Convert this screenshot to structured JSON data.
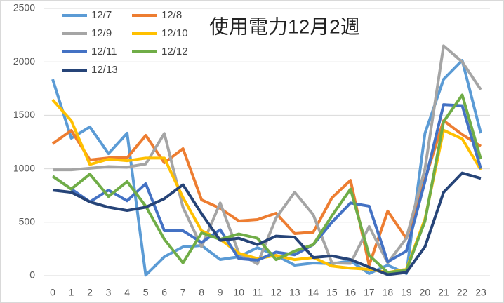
{
  "chart_data": {
    "type": "line",
    "title": "使用電力12月2週",
    "x": [
      0,
      1,
      2,
      3,
      4,
      5,
      6,
      7,
      8,
      9,
      10,
      11,
      12,
      13,
      14,
      15,
      16,
      17,
      18,
      19,
      20,
      21,
      22,
      23
    ],
    "xlim": [
      0,
      23
    ],
    "ylim": [
      0,
      2500
    ],
    "yticks": [
      0,
      500,
      1000,
      1500,
      2000,
      2500
    ],
    "grid": true,
    "legend": "upper left",
    "series": [
      {
        "name": "12/7",
        "color": "#5b9bd5",
        "values": [
          1837,
          1286,
          1391,
          1142,
          1332,
          5,
          177,
          269,
          282,
          151,
          177,
          262,
          190,
          98,
          118,
          112,
          138,
          20,
          98,
          20,
          1332,
          1837,
          2014,
          1332
        ]
      },
      {
        "name": "12/8",
        "color": "#ed7d31",
        "values": [
          1234,
          1358,
          1083,
          1102,
          1102,
          1312,
          1056,
          1188,
          709,
          630,
          512,
          525,
          584,
          394,
          407,
          728,
          892,
          98,
          604,
          348,
          900,
          1450,
          1320,
          1210
        ]
      },
      {
        "name": "12/9",
        "color": "#a5a5a5",
        "values": [
          990,
          990,
          1005,
          1020,
          1015,
          1045,
          1330,
          640,
          270,
          680,
          210,
          110,
          540,
          780,
          570,
          120,
          115,
          460,
          120,
          350,
          1000,
          2150,
          2000,
          1740
        ]
      },
      {
        "name": "12/10",
        "color": "#ffc000",
        "values": [
          1645,
          1450,
          1040,
          1090,
          1075,
          1100,
          1100,
          730,
          420,
          340,
          210,
          160,
          190,
          150,
          170,
          90,
          70,
          60,
          30,
          60,
          530,
          1360,
          1280,
          990
        ]
      },
      {
        "name": "12/11",
        "color": "#4472c4",
        "values": [
          930,
          810,
          690,
          800,
          700,
          860,
          420,
          420,
          310,
          430,
          160,
          145,
          220,
          195,
          290,
          500,
          680,
          650,
          130,
          230,
          880,
          1600,
          1590,
          1000
        ]
      },
      {
        "name": "12/12",
        "color": "#70ad47",
        "values": [
          930,
          810,
          950,
          740,
          880,
          650,
          340,
          120,
          400,
          340,
          390,
          350,
          150,
          230,
          290,
          560,
          810,
          190,
          30,
          50,
          510,
          1440,
          1690,
          1090
        ]
      },
      {
        "name": "12/13",
        "color": "#264478",
        "values": [
          800,
          780,
          690,
          640,
          610,
          640,
          720,
          850,
          580,
          330,
          350,
          290,
          370,
          360,
          170,
          185,
          150,
          80,
          10,
          30,
          270,
          780,
          960,
          910
        ]
      }
    ]
  }
}
